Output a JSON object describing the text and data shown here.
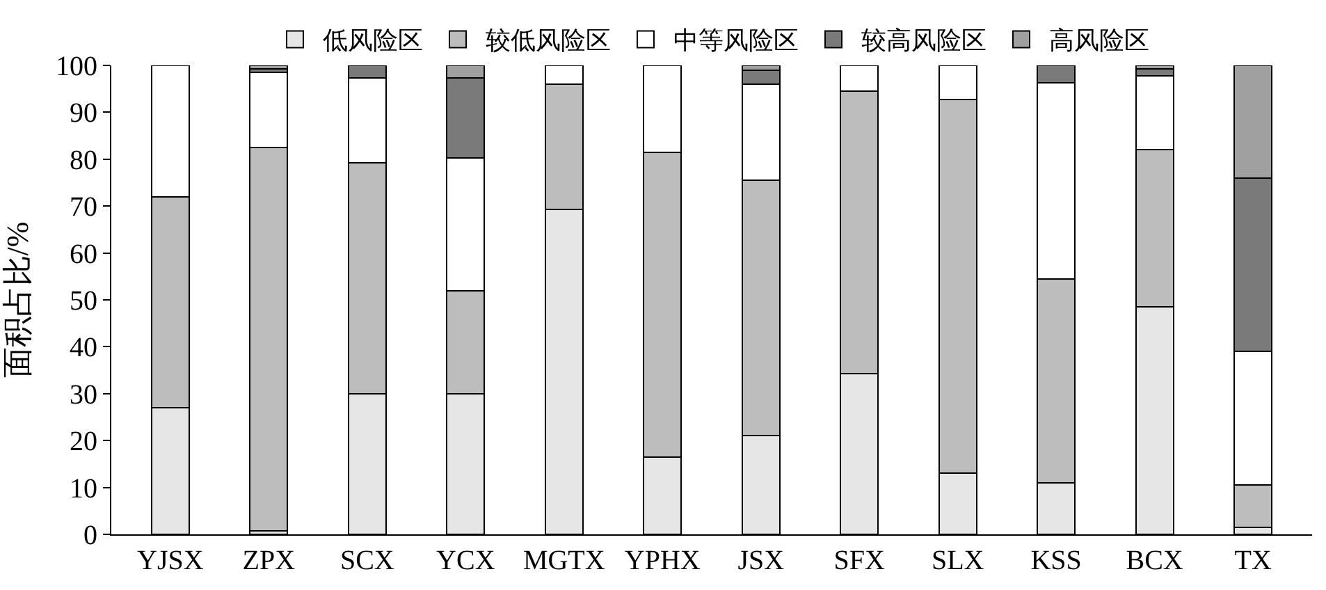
{
  "chart_data": {
    "type": "bar",
    "stacked": true,
    "ylabel": "面积占比/%",
    "categories": [
      "YJSX",
      "ZPX",
      "SCX",
      "YCX",
      "MGTX",
      "YPHX",
      "JSX",
      "SFX",
      "SLX",
      "KSS",
      "BCX",
      "TX"
    ],
    "series": [
      {
        "name": "低风险区",
        "color": "#e6e6e6",
        "values": [
          27,
          0.8,
          30,
          30,
          69.3,
          16.5,
          21,
          34.3,
          13,
          11,
          48.5,
          1.5
        ]
      },
      {
        "name": "较低风险区",
        "color": "#bdbdbd",
        "values": [
          45,
          81.7,
          49.3,
          22,
          26.7,
          65,
          54.5,
          60.2,
          79.8,
          43.5,
          33.5,
          9
        ]
      },
      {
        "name": "中等风险区",
        "color": "#ffffff",
        "values": [
          28,
          16,
          18,
          28.3,
          4,
          18.5,
          20.5,
          5.5,
          7.2,
          41.8,
          15.8,
          28.5
        ]
      },
      {
        "name": "较高风险区",
        "color": "#7a7a7a",
        "values": [
          null,
          0.7,
          2.7,
          17,
          null,
          null,
          3,
          null,
          null,
          3.7,
          1.4,
          37
        ]
      },
      {
        "name": "高风险区",
        "color": "#a0a0a0",
        "values": [
          null,
          0.8,
          null,
          2.7,
          null,
          null,
          1,
          null,
          null,
          null,
          0.8,
          24
        ]
      }
    ],
    "ylim": [
      0,
      100
    ],
    "yticks": [
      0,
      10,
      20,
      30,
      40,
      50,
      60,
      70,
      80,
      90,
      100
    ],
    "legend": "top"
  }
}
